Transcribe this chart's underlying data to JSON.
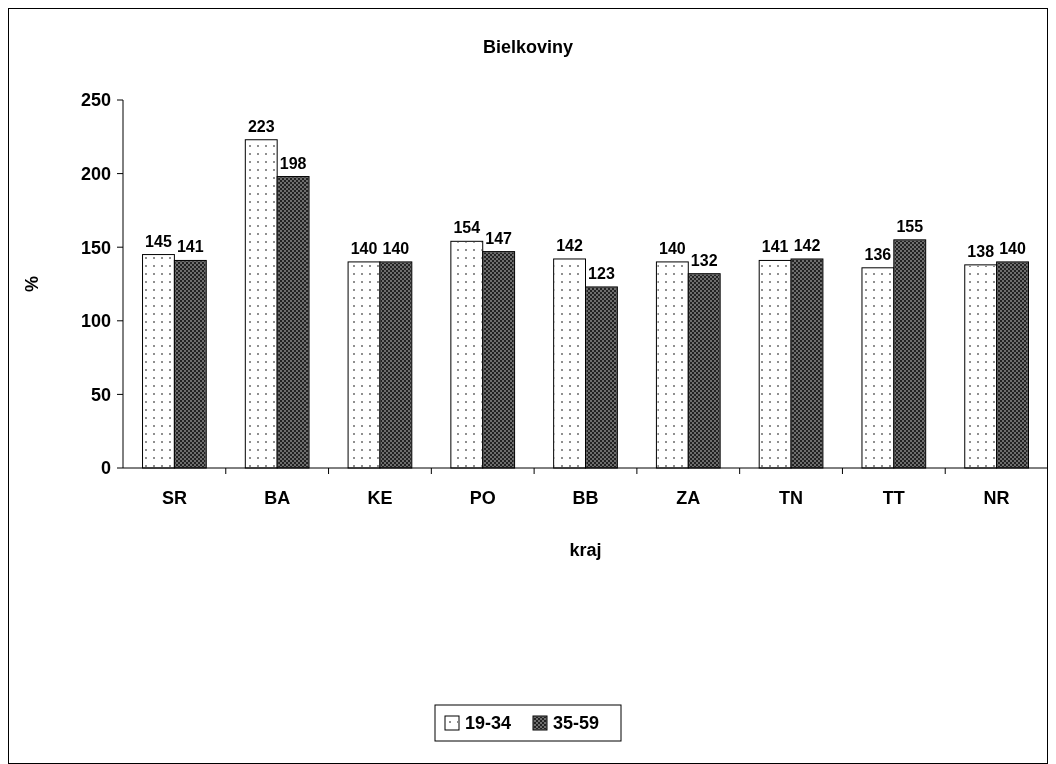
{
  "chart_data": {
    "type": "bar",
    "title": "Bielkoviny",
    "xlabel": "kraj",
    "ylabel": "%",
    "categories": [
      "SR",
      "BA",
      "KE",
      "PO",
      "BB",
      "ZA",
      "TN",
      "TT",
      "NR"
    ],
    "series": [
      {
        "name": "19-34",
        "color": "#ffffff",
        "values": [
          145,
          223,
          140,
          154,
          142,
          140,
          141,
          136,
          138
        ]
      },
      {
        "name": "35-59",
        "color": "#6e6e6e",
        "values": [
          141,
          198,
          140,
          147,
          123,
          132,
          142,
          155,
          140
        ]
      }
    ],
    "ylim": [
      0,
      250
    ],
    "yticks": [
      0,
      50,
      100,
      150,
      200,
      250
    ],
    "grid": false,
    "legend": "bottom",
    "data_labels": true
  }
}
